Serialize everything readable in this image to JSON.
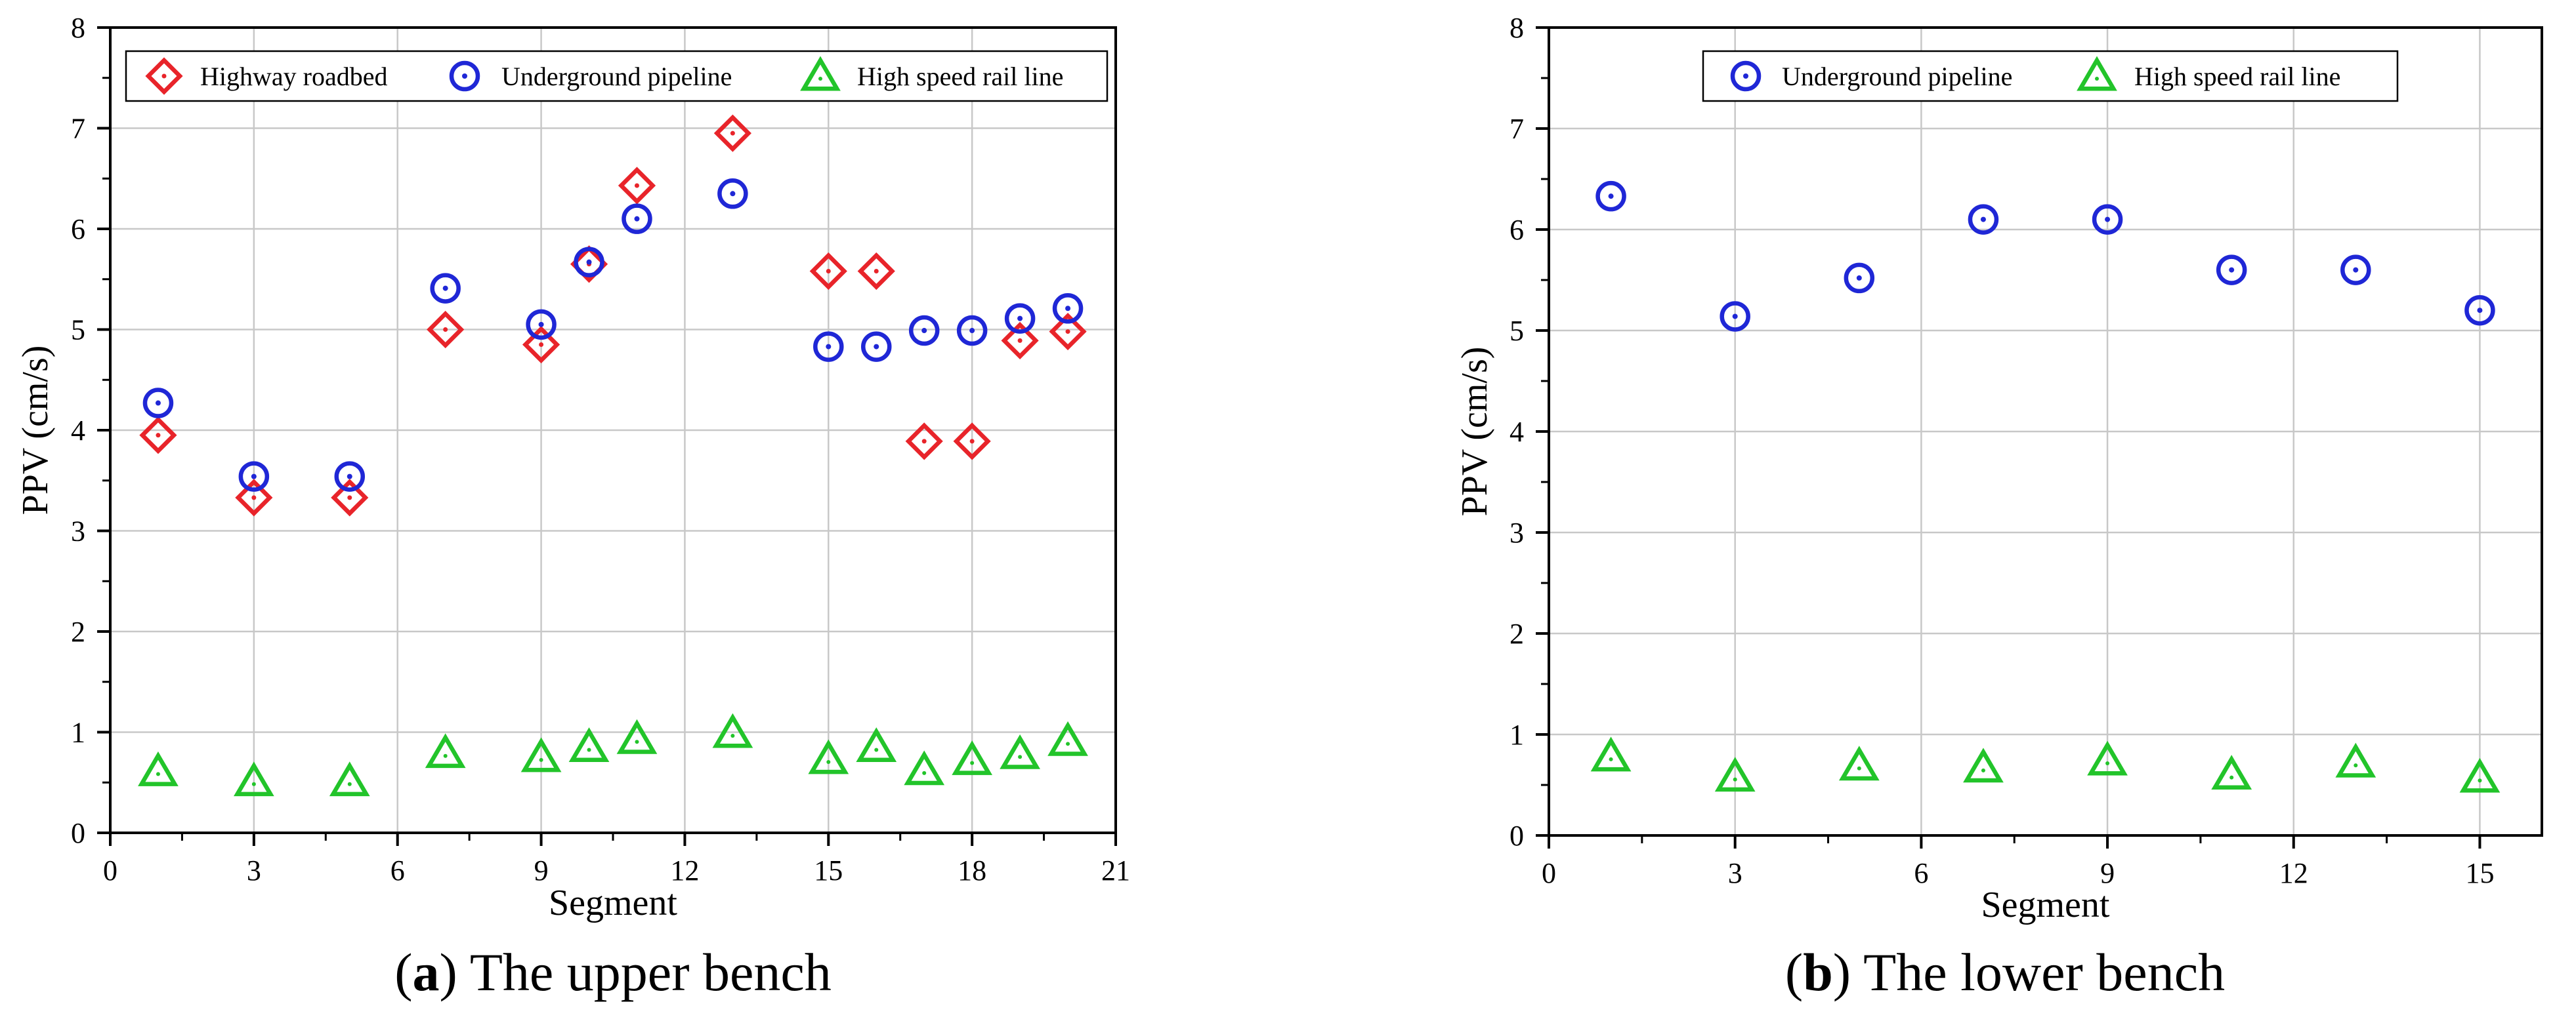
{
  "colors": {
    "highway": "#e8242a",
    "pipeline": "#1f27d6",
    "rail": "#22c42a"
  },
  "chart_data": [
    {
      "type": "scatter",
      "id": "a",
      "caption_letter": "a",
      "caption_text": ") The upper bench",
      "caption_open": "(",
      "xlabel": "Segment",
      "ylabel": "PPV (cm/s)",
      "xlim": [
        0,
        21
      ],
      "ylim": [
        0,
        8
      ],
      "xticks": [
        0,
        3,
        6,
        9,
        12,
        15,
        18,
        21
      ],
      "yticks": [
        0,
        1,
        2,
        3,
        4,
        5,
        6,
        7,
        8
      ],
      "legend_position": "top",
      "series": [
        {
          "name": "Highway roadbed",
          "marker": "diamond",
          "color": "#e8242a",
          "x": [
            1,
            3,
            5,
            7,
            9,
            10,
            11,
            13,
            15,
            16,
            17,
            18,
            19,
            20
          ],
          "y": [
            3.95,
            3.33,
            3.33,
            5.0,
            4.85,
            5.65,
            6.43,
            6.95,
            5.58,
            5.58,
            3.89,
            3.89,
            4.89,
            4.98
          ]
        },
        {
          "name": "Underground pipeline",
          "marker": "circle",
          "color": "#1f27d6",
          "x": [
            1,
            3,
            5,
            7,
            9,
            10,
            11,
            13,
            15,
            16,
            17,
            18,
            19,
            20
          ],
          "y": [
            4.27,
            3.54,
            3.54,
            5.41,
            5.05,
            5.67,
            6.1,
            6.35,
            4.83,
            4.83,
            4.99,
            4.99,
            5.11,
            5.21
          ]
        },
        {
          "name": "High speed rail line",
          "marker": "triangle",
          "color": "#22c42a",
          "x": [
            1,
            3,
            5,
            7,
            9,
            10,
            11,
            13,
            15,
            16,
            17,
            18,
            19,
            20
          ],
          "y": [
            0.61,
            0.51,
            0.51,
            0.79,
            0.75,
            0.85,
            0.93,
            0.99,
            0.73,
            0.85,
            0.62,
            0.72,
            0.78,
            0.91
          ]
        }
      ]
    },
    {
      "type": "scatter",
      "id": "b",
      "caption_letter": "b",
      "caption_text": ") The lower bench",
      "caption_open": "(",
      "xlabel": "Segment",
      "ylabel": "PPV (cm/s)",
      "xlim": [
        0,
        16
      ],
      "ylim": [
        0,
        8
      ],
      "xticks": [
        0,
        3,
        6,
        9,
        12,
        15
      ],
      "yticks": [
        0,
        1,
        2,
        3,
        4,
        5,
        6,
        7,
        8
      ],
      "legend_position": "top",
      "series": [
        {
          "name": "Underground pipeline",
          "marker": "circle",
          "color": "#1f27d6",
          "x": [
            1,
            3,
            5,
            7,
            9,
            11,
            13,
            15
          ],
          "y": [
            6.33,
            5.14,
            5.52,
            6.1,
            6.1,
            5.6,
            5.6,
            5.2
          ]
        },
        {
          "name": "High speed rail line",
          "marker": "triangle",
          "color": "#22c42a",
          "x": [
            1,
            3,
            5,
            7,
            9,
            11,
            13,
            15
          ],
          "y": [
            0.78,
            0.58,
            0.69,
            0.67,
            0.74,
            0.6,
            0.72,
            0.57
          ]
        }
      ]
    }
  ]
}
